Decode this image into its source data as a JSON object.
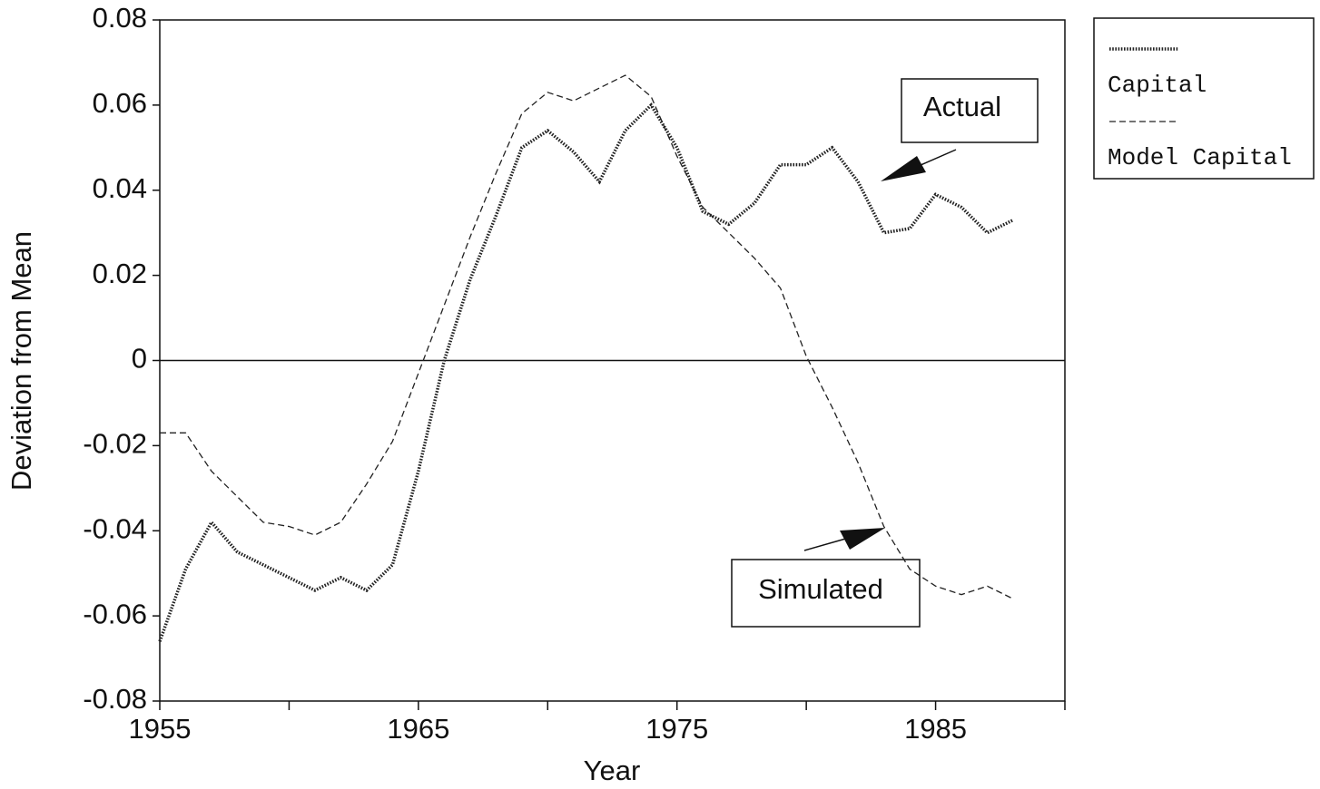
{
  "chart_data": {
    "type": "line",
    "x_label": "Year",
    "y_label": "Deviation from Mean",
    "x": [
      1955,
      1956,
      1957,
      1958,
      1959,
      1960,
      1961,
      1962,
      1963,
      1964,
      1965,
      1966,
      1967,
      1968,
      1969,
      1970,
      1971,
      1972,
      1973,
      1974,
      1975,
      1976,
      1977,
      1978,
      1979,
      1980,
      1981,
      1982,
      1983,
      1984,
      1985,
      1986,
      1987,
      1988
    ],
    "series": [
      {
        "name": "Capital",
        "color": "#222222",
        "line_style": "dotted",
        "values": [
          -0.066,
          -0.049,
          -0.038,
          -0.045,
          -0.048,
          -0.051,
          -0.054,
          -0.051,
          -0.054,
          -0.048,
          -0.026,
          0.0,
          0.019,
          0.034,
          0.05,
          0.054,
          0.049,
          0.042,
          0.054,
          0.06,
          0.05,
          0.035,
          0.032,
          0.037,
          0.046,
          0.046,
          0.05,
          0.042,
          0.03,
          0.031,
          0.039,
          0.036,
          0.03,
          0.033
        ]
      },
      {
        "name": "Model Capital",
        "color": "#222222",
        "line_style": "dashed",
        "values": [
          -0.017,
          -0.017,
          -0.026,
          -0.032,
          -0.038,
          -0.039,
          -0.041,
          -0.038,
          -0.029,
          -0.019,
          -0.003,
          0.013,
          0.029,
          0.044,
          0.058,
          0.063,
          0.061,
          0.064,
          0.067,
          0.062,
          0.048,
          0.036,
          0.03,
          0.024,
          0.017,
          0.001,
          -0.011,
          -0.024,
          -0.039,
          -0.049,
          -0.053,
          -0.055,
          -0.053,
          -0.056
        ]
      }
    ],
    "xlim": [
      1955,
      1990
    ],
    "xticks": [
      1955,
      1965,
      1975,
      1985
    ],
    "xminor_ticks": [
      1960,
      1970,
      1980,
      1990
    ],
    "ylim": [
      -0.08,
      0.08
    ],
    "yticks": [
      -0.08,
      -0.06,
      -0.04,
      -0.02,
      0,
      0.02,
      0.04,
      0.06,
      0.08
    ],
    "zero_line": true,
    "grid": false,
    "legend_position": "outside-right",
    "annotations": [
      "Actual",
      "Simulated"
    ]
  }
}
